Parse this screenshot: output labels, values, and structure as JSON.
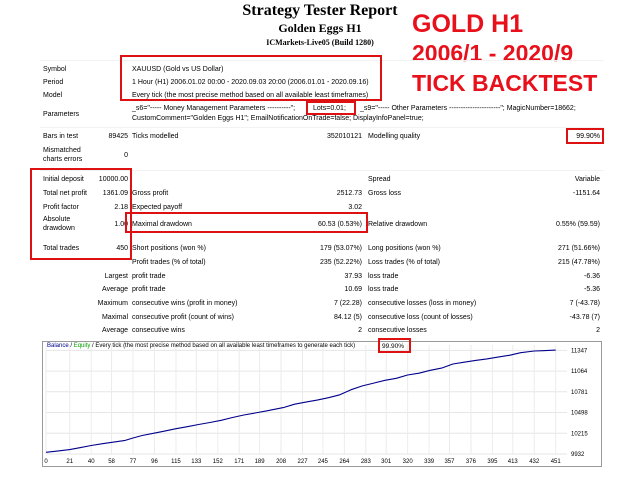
{
  "report": {
    "title": "Strategy Tester Report",
    "expert": "Golden Eggs H1",
    "broker_build": "ICMarkets-Live05 (Build 1280)"
  },
  "overlay": {
    "line1": "GOLD H1",
    "line2": "2006/1 - 2020/9",
    "line3": "TICK BACKTEST"
  },
  "info": {
    "symbol_label": "Symbol",
    "symbol": "XAUUSD (Gold vs US Dollar)",
    "period_label": "Period",
    "period": "1 Hour (H1) 2006.01.02 00:00 - 2020.09.03 20:00 (2006.01.01 - 2020.09.16)",
    "model_label": "Model",
    "model": "Every tick (the most precise method based on all available least timeframes)",
    "parameters_label": "Parameters",
    "parameters_line1_a": "_s6=\"----- Money Management Parameters ----------\";",
    "parameters_line1_lots": "Lots=0.01;",
    "parameters_line1_b": "_s9=\"----- Other Parameters ----------------------\"; MagicNumber=18662;",
    "parameters_line2": "CustomComment=\"Golden Eggs H1\"; EmailNotificationOnTrade=false; DisplayInfoPanel=true;",
    "bars_label": "Bars in test",
    "bars": "89425",
    "ticks_label": "Ticks modelled",
    "ticks": "352010121",
    "quality_label": "Modelling quality",
    "quality": "99.90%",
    "mismatch_label1": "Mismatched",
    "mismatch_label2": "charts errors",
    "mismatch": "0"
  },
  "stats": {
    "initial_deposit_label": "Initial deposit",
    "initial_deposit": "10000.00",
    "spread_label": "Spread",
    "spread": "Variable",
    "net_profit_label": "Total net profit",
    "net_profit": "1361.09",
    "gross_profit_label": "Gross profit",
    "gross_profit": "2512.73",
    "gross_loss_label": "Gross loss",
    "gross_loss": "-1151.64",
    "profit_factor_label": "Profit factor",
    "profit_factor": "2.18",
    "expected_payoff_label": "Expected payoff",
    "expected_payoff": "3.02",
    "abs_dd_label1": "Absolute",
    "abs_dd_label2": "drawdown",
    "abs_dd": "1.00",
    "max_dd_label": "Maximal drawdown",
    "max_dd": "60.53 (0.53%)",
    "rel_dd_label": "Relative drawdown",
    "rel_dd": "0.55% (59.59)",
    "total_trades_label": "Total trades",
    "total_trades": "450",
    "short_label": "Short positions (won %)",
    "short": "179 (53.07%)",
    "long_label": "Long positions (won %)",
    "long": "271 (51.66%)",
    "profit_trades_label": "Profit trades (% of total)",
    "profit_trades": "235 (52.22%)",
    "loss_trades_label": "Loss trades (% of total)",
    "loss_trades": "215 (47.78%)",
    "largest_label": "Largest",
    "largest_profit_label": "profit trade",
    "largest_profit": "37.93",
    "largest_loss_label": "loss trade",
    "largest_loss": "-6.36",
    "average_label": "Average",
    "average_profit_label": "profit trade",
    "average_profit": "10.69",
    "average_loss_label": "loss trade",
    "average_loss": "-5.36",
    "maximum_label": "Maximum",
    "max_cons_wins_label": "consecutive wins (profit in money)",
    "max_cons_wins": "7 (22.28)",
    "max_cons_losses_label": "consecutive losses (loss in money)",
    "max_cons_losses": "7 (-43.78)",
    "maximal_label": "Maximal",
    "maximal_cons_profit_label": "consecutive profit (count of wins)",
    "maximal_cons_profit": "84.12 (5)",
    "maximal_cons_loss_label": "consecutive loss (count of losses)",
    "maximal_cons_loss": "-43.78 (7)",
    "avg_cons_label": "Average",
    "avg_cons_wins_label": "consecutive wins",
    "avg_cons_wins": "2",
    "avg_cons_losses_label": "consecutive losses",
    "avg_cons_losses": "2"
  },
  "chart_header": {
    "balance": "Balance",
    "sep": " / ",
    "equity": "Equity",
    "desc": " / Every tick (the most precise method based on all available least timeframes to generate each tick)",
    "quality": "99.90%"
  },
  "chart_data": {
    "type": "line",
    "title": "",
    "xlabel": "",
    "ylabel": "",
    "series": [
      {
        "color": "#00008b",
        "x": [
          0,
          10,
          21,
          30,
          40,
          50,
          60,
          70,
          77,
          85,
          95,
          105,
          115,
          125,
          135,
          145,
          155,
          165,
          175,
          185,
          195,
          200,
          210,
          220,
          230,
          240,
          250,
          260,
          270,
          280,
          290,
          300,
          310,
          320,
          330,
          340,
          350,
          360,
          370,
          380,
          390,
          400,
          410,
          420,
          432,
          440,
          451
        ],
        "y": [
          9955,
          9972,
          9992,
          10018,
          10048,
          10072,
          10095,
          10118,
          10150,
          10185,
          10215,
          10245,
          10278,
          10305,
          10335,
          10362,
          10392,
          10430,
          10465,
          10492,
          10520,
          10535,
          10565,
          10612,
          10640,
          10668,
          10700,
          10740,
          10810,
          10862,
          10900,
          10938,
          10965,
          11010,
          11035,
          11075,
          11105,
          11160,
          11185,
          11210,
          11230,
          11255,
          11280,
          11315,
          11338,
          11342,
          11350
        ]
      }
    ],
    "x_ticks": [
      "0",
      "21",
      "40",
      "58",
      "77",
      "96",
      "115",
      "133",
      "152",
      "171",
      "189",
      "208",
      "227",
      "245",
      "264",
      "283",
      "301",
      "320",
      "339",
      "357",
      "376",
      "395",
      "413",
      "432",
      "451"
    ],
    "y_ticks": [
      "11347",
      "11064",
      "10781",
      "10498",
      "10215",
      "9932"
    ],
    "xlim": [
      0,
      461
    ],
    "ylim": [
      9932,
      11420
    ],
    "grid": true
  },
  "colors": {
    "highlight_box": "#dd1111",
    "overlay_text": "#e8101a",
    "balance_line": "#00008b",
    "equity_text": "#00a000"
  }
}
